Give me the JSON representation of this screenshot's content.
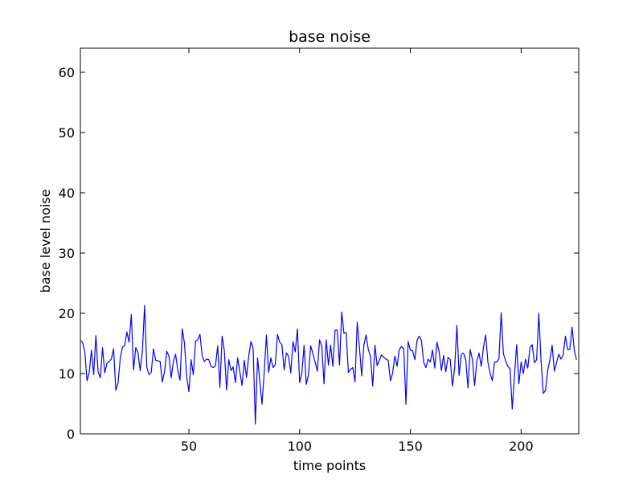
{
  "chart_data": {
    "type": "line",
    "title": "base noise",
    "xlabel": "time points",
    "ylabel": "base level noise",
    "xlim": [
      1,
      226
    ],
    "ylim": [
      0,
      64
    ],
    "xticks": [
      50,
      100,
      150,
      200
    ],
    "yticks": [
      0,
      10,
      20,
      30,
      40,
      50,
      60
    ],
    "grid": false,
    "series": [
      {
        "color": "#0000ff",
        "x_start": 1,
        "x_step": 1,
        "values": [
          15.4,
          15.2,
          13.6,
          8.8,
          10.2,
          13.9,
          9.8,
          16.3,
          10.3,
          9.3,
          14.3,
          10.1,
          11.7,
          12.0,
          12.4,
          14.1,
          7.2,
          8.4,
          12.5,
          14.4,
          14.6,
          16.9,
          15.2,
          19.8,
          10.6,
          14.3,
          13.5,
          10.5,
          13.7,
          21.3,
          11.0,
          9.8,
          10.2,
          14.1,
          12.2,
          12.1,
          12.0,
          8.6,
          10.3,
          13.7,
          12.9,
          9.3,
          12.0,
          13.2,
          10.5,
          8.9,
          17.4,
          15.0,
          9.5,
          7.0,
          12.3,
          9.8,
          15.4,
          15.6,
          16.5,
          12.9,
          12.0,
          12.4,
          12.3,
          11.2,
          11.0,
          11.3,
          14.6,
          7.7,
          16.2,
          13.8,
          7.3,
          12.3,
          10.5,
          11.1,
          8.5,
          12.6,
          10.3,
          8.0,
          12.2,
          9.4,
          12.8,
          15.3,
          14.2,
          1.6,
          12.6,
          8.9,
          4.9,
          10.1,
          16.4,
          10.2,
          12.6,
          11.0,
          11.5,
          16.5,
          15.2,
          14.8,
          10.6,
          13.4,
          12.9,
          10.1,
          15.3,
          13.6,
          17.4,
          8.5,
          10.1,
          14.7,
          8.2,
          9.8,
          14.6,
          13.3,
          11.9,
          10.4,
          15.6,
          14.5,
          8.3,
          15.6,
          11.4,
          14.7,
          11.2,
          17.2,
          17.2,
          11.4,
          20.2,
          16.7,
          16.8,
          10.2,
          10.7,
          11.0,
          8.6,
          18.5,
          14.4,
          9.6,
          14.7,
          16.4,
          14.0,
          12.8,
          7.9,
          14.7,
          11.3,
          12.2,
          13.1,
          12.7,
          12.4,
          12.2,
          8.8,
          10.1,
          12.9,
          11.2,
          14.0,
          14.5,
          14.1,
          4.9,
          15.3,
          13.9,
          13.8,
          12.3,
          15.5,
          16.2,
          15.5,
          11.9,
          11.0,
          12.4,
          11.9,
          13.9,
          10.9,
          15.2,
          13.6,
          10.5,
          13.0,
          10.3,
          12.7,
          12.3,
          7.9,
          11.0,
          18.0,
          9.7,
          13.2,
          13.4,
          12.3,
          7.6,
          14.0,
          12.3,
          8.0,
          12.0,
          13.4,
          11.2,
          14.4,
          16.4,
          11.9,
          10.1,
          8.8,
          11.9,
          11.9,
          12.5,
          20.1,
          13.3,
          12.1,
          11.2,
          10.8,
          4.1,
          9.7,
          14.8,
          8.3,
          11.9,
          10.0,
          12.4,
          10.9,
          14.3,
          14.8,
          11.8,
          12.3,
          20.0,
          12.1,
          6.7,
          7.2,
          10.5,
          12.3,
          14.7,
          10.4,
          11.8,
          13.2,
          12.4,
          13.1,
          16.2,
          14.0,
          14.0,
          17.7,
          13.9,
          12.3
        ]
      }
    ]
  }
}
